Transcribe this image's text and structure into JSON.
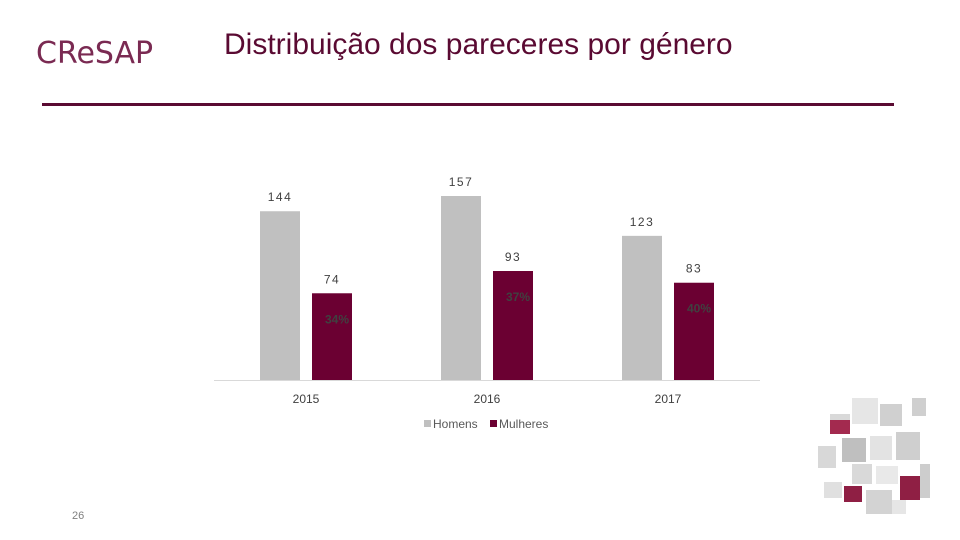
{
  "header": {
    "logo_text": "CReSAP",
    "title": "Distribuição dos pareceres por género"
  },
  "footer": {
    "page_number": "26"
  },
  "colors": {
    "homens": "#c0c0c0",
    "mulheres": "#6b0032",
    "accent": "#5a0a32"
  },
  "chart_data": {
    "type": "bar",
    "title": "Distribuição dos pareceres por género",
    "categories": [
      "2015",
      "2016",
      "2017"
    ],
    "series": [
      {
        "name": "Homens",
        "values": [
          144,
          157,
          123
        ]
      },
      {
        "name": "Mulheres",
        "values": [
          74,
          93,
          83
        ]
      }
    ],
    "percent_labels": [
      "34%",
      "37%",
      "40%"
    ],
    "ylim": [
      0,
      157
    ],
    "xlabel": "",
    "ylabel": "",
    "legend": "bottom",
    "grid": false
  }
}
